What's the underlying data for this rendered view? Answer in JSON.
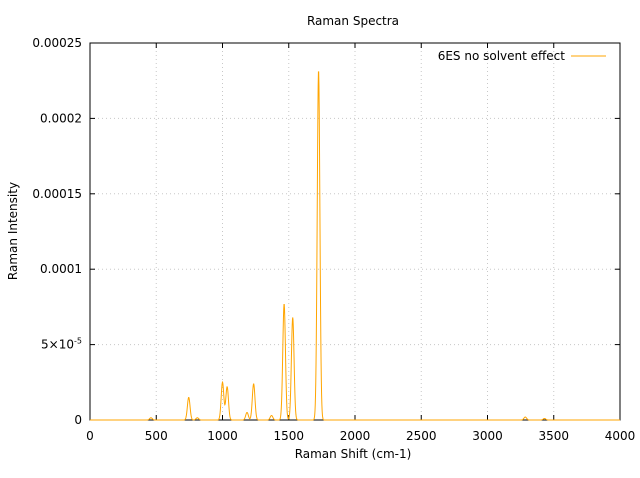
{
  "chart_data": {
    "type": "line",
    "title": "Raman Spectra",
    "xlabel": "Raman Shift (cm-1)",
    "ylabel": "Raman Intensity",
    "xlim": [
      0,
      4000
    ],
    "ylim": [
      0,
      0.00025
    ],
    "grid": true,
    "legend_position": "top-right",
    "x_ticks": [
      {
        "value": 0,
        "label": "0"
      },
      {
        "value": 500,
        "label": "500"
      },
      {
        "value": 1000,
        "label": "1000"
      },
      {
        "value": 1500,
        "label": "1500"
      },
      {
        "value": 2000,
        "label": "2000"
      },
      {
        "value": 2500,
        "label": "2500"
      },
      {
        "value": 3000,
        "label": "3000"
      },
      {
        "value": 3500,
        "label": "3500"
      },
      {
        "value": 4000,
        "label": "4000"
      }
    ],
    "y_ticks": [
      {
        "value": 0,
        "label": "0"
      },
      {
        "value": 5e-05,
        "label": "5×10-5"
      },
      {
        "value": 0.0001,
        "label": "0.0001"
      },
      {
        "value": 0.00015,
        "label": "0.00015"
      },
      {
        "value": 0.0002,
        "label": "0.0002"
      },
      {
        "value": 0.00025,
        "label": "0.00025"
      }
    ],
    "series": [
      {
        "name": "6ES no solvent effect",
        "color": "#ffa500",
        "peaks": [
          {
            "x": 460,
            "height": 1.5e-06
          },
          {
            "x": 745,
            "height": 1.5e-05
          },
          {
            "x": 810,
            "height": 1.5e-06
          },
          {
            "x": 1000,
            "height": 2.5e-05
          },
          {
            "x": 1035,
            "height": 2.2e-05
          },
          {
            "x": 1185,
            "height": 5e-06
          },
          {
            "x": 1235,
            "height": 2.4e-05
          },
          {
            "x": 1370,
            "height": 3e-06
          },
          {
            "x": 1465,
            "height": 7.7e-05
          },
          {
            "x": 1530,
            "height": 6.8e-05
          },
          {
            "x": 1725,
            "height": 0.000232
          },
          {
            "x": 3285,
            "height": 2e-06
          },
          {
            "x": 3430,
            "height": 1e-06
          }
        ]
      }
    ]
  }
}
